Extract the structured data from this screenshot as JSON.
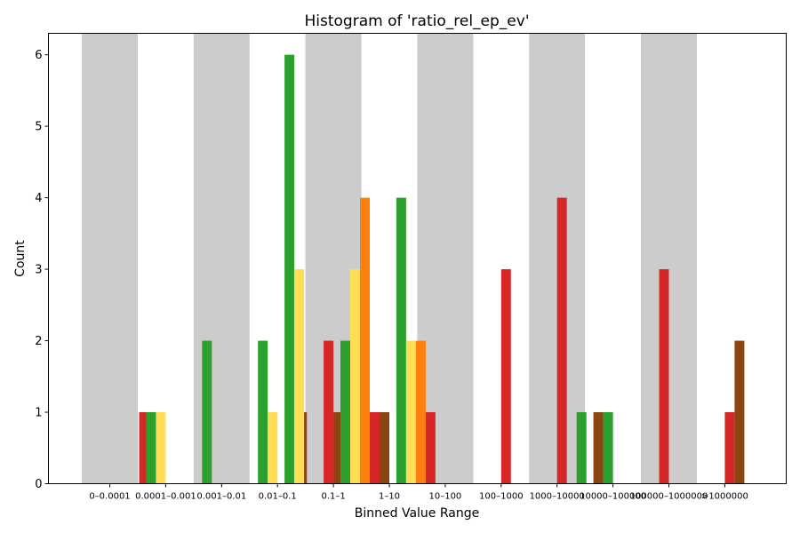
{
  "chart_data": {
    "type": "bar",
    "title": "Histogram of 'ratio_rel_ep_ev'",
    "xlabel": "Binned Value Range",
    "ylabel": "Count",
    "ylim": [
      0,
      6.3
    ],
    "yticks": [
      "0",
      "1",
      "2",
      "3",
      "4",
      "5",
      "6"
    ],
    "grid": false,
    "legend": "none",
    "categories": [
      "0–0.0001",
      "0.0001–0.001",
      "0.001–0.01",
      "0.01–0.1",
      "0.1–1",
      "1–10",
      "10–100",
      "100–1000",
      "1000–10000",
      "10000–100000",
      "100000–1000000",
      ">1000000"
    ],
    "shaded_bands": [
      0,
      2,
      4,
      6,
      8,
      10
    ],
    "band_color": "#cccccc",
    "series_slots": 10,
    "series": [
      {
        "color": "#d62728",
        "values": [
          1,
          0,
          0,
          0,
          0,
          0,
          0,
          0,
          0,
          0,
          0,
          0
        ]
      },
      {
        "color": "#8b4513",
        "values": [
          1,
          0,
          0,
          0,
          0,
          0,
          0,
          0,
          0,
          0,
          0,
          0
        ]
      },
      {
        "color": "#2ca02c",
        "values": [
          0,
          1,
          0,
          0,
          0,
          0,
          0,
          0,
          0,
          0,
          0,
          0
        ]
      },
      {
        "color": "#ffdd57",
        "values": [
          0,
          1,
          0,
          0,
          0,
          0,
          0,
          0,
          0,
          0,
          0,
          0
        ]
      },
      {
        "color": "#2ca02c",
        "values": [
          0,
          0,
          2,
          0,
          0,
          0,
          0,
          0,
          0,
          0,
          0,
          0
        ]
      },
      {
        "color": "#2ca02c",
        "values": [
          0,
          0,
          0,
          2,
          0,
          0,
          0,
          0,
          0,
          0,
          0,
          0
        ]
      },
      {
        "color": "#ffdd57",
        "values": [
          0,
          0,
          0,
          1,
          0,
          0,
          0,
          0,
          0,
          0,
          0,
          0
        ]
      },
      {
        "color": "#8b4513",
        "values": [
          0,
          0,
          0,
          1,
          0,
          0,
          0,
          0,
          0,
          0,
          0,
          0
        ]
      },
      {
        "color": "#2ca02c",
        "values": [
          0,
          0,
          0,
          0,
          6,
          0,
          0,
          0,
          0,
          0,
          0,
          0
        ]
      },
      {
        "color": "#ffdd57",
        "values": [
          0,
          0,
          0,
          0,
          3,
          0,
          0,
          0,
          0,
          0,
          0,
          0
        ]
      },
      {
        "color": "#d62728",
        "values": [
          0,
          0,
          0,
          0,
          2,
          0,
          0,
          0,
          0,
          0,
          0,
          0
        ]
      },
      {
        "color": "#8b4513",
        "values": [
          0,
          0,
          0,
          0,
          1,
          0,
          0,
          0,
          0,
          0,
          0,
          0
        ]
      },
      {
        "color": "#2ca02c",
        "values": [
          0,
          0,
          0,
          0,
          0,
          2,
          0,
          0,
          0,
          0,
          0,
          0
        ]
      },
      {
        "color": "#ffdd57",
        "values": [
          0,
          0,
          0,
          0,
          0,
          3,
          0,
          0,
          0,
          0,
          0,
          0
        ]
      },
      {
        "color": "#ff7f0e",
        "values": [
          0,
          0,
          0,
          0,
          0,
          4,
          0,
          0,
          0,
          0,
          0,
          0
        ]
      },
      {
        "color": "#d62728",
        "values": [
          0,
          0,
          0,
          0,
          0,
          1,
          0,
          0,
          0,
          0,
          0,
          0
        ]
      },
      {
        "color": "#8b4513",
        "values": [
          0,
          0,
          0,
          0,
          0,
          1,
          0,
          0,
          0,
          0,
          0,
          0
        ]
      },
      {
        "color": "#2ca02c",
        "values": [
          0,
          0,
          0,
          0,
          0,
          0,
          4,
          0,
          0,
          0,
          0,
          0
        ]
      },
      {
        "color": "#ffdd57",
        "values": [
          0,
          0,
          0,
          0,
          0,
          0,
          2,
          0,
          0,
          0,
          0,
          0
        ]
      },
      {
        "color": "#ff7f0e",
        "values": [
          0,
          0,
          0,
          0,
          0,
          0,
          2,
          0,
          0,
          0,
          0,
          0
        ]
      },
      {
        "color": "#d62728",
        "values": [
          0,
          0,
          0,
          0,
          0,
          0,
          1,
          0,
          0,
          0,
          0,
          0
        ]
      },
      {
        "color": "#d62728",
        "values": [
          0,
          0,
          0,
          0,
          0,
          0,
          0,
          3,
          0,
          0,
          0,
          0
        ]
      },
      {
        "color": "#d62728",
        "values": [
          0,
          0,
          0,
          0,
          0,
          0,
          0,
          0,
          4,
          0,
          0,
          0
        ]
      },
      {
        "color": "#2ca02c",
        "values": [
          0,
          0,
          0,
          0,
          0,
          0,
          0,
          0,
          1,
          0,
          0,
          0
        ]
      },
      {
        "color": "#8b4513",
        "values": [
          0,
          0,
          0,
          0,
          0,
          0,
          0,
          0,
          0,
          1,
          0,
          0
        ]
      },
      {
        "color": "#2ca02c",
        "values": [
          0,
          0,
          0,
          0,
          0,
          0,
          0,
          0,
          0,
          1,
          0,
          0
        ]
      },
      {
        "color": "#d62728",
        "values": [
          0,
          0,
          0,
          0,
          0,
          0,
          0,
          0,
          0,
          0,
          3,
          0
        ]
      },
      {
        "color": "#d62728",
        "values": [
          0,
          0,
          0,
          0,
          0,
          0,
          0,
          0,
          0,
          0,
          0,
          1
        ]
      },
      {
        "color": "#8b4513",
        "values": [
          0,
          0,
          0,
          0,
          0,
          0,
          0,
          0,
          0,
          0,
          0,
          2
        ]
      }
    ],
    "bar_slots": [
      [
        0,
        1,
        0,
        3.5
      ],
      [
        0,
        1,
        0,
        4.5
      ],
      [
        1,
        1,
        2,
        -1.5
      ],
      [
        1,
        1,
        3,
        -0.5
      ],
      [
        2,
        2,
        4,
        -1.5
      ],
      [
        3,
        2,
        5,
        -1.5
      ],
      [
        3,
        1,
        6,
        -0.5
      ],
      [
        3,
        1,
        7,
        2.5
      ],
      [
        4,
        6,
        8,
        -4.5
      ],
      [
        4,
        3,
        9,
        -3.5
      ],
      [
        4,
        2,
        10,
        -0.5
      ],
      [
        4,
        1,
        11,
        0.5
      ],
      [
        5,
        2,
        12,
        -4.5
      ],
      [
        5,
        3,
        13,
        -3.5
      ],
      [
        5,
        4,
        14,
        -2.5
      ],
      [
        5,
        1,
        15,
        -1.5
      ],
      [
        5,
        1,
        16,
        -0.5
      ],
      [
        6,
        4,
        17,
        -4.5
      ],
      [
        6,
        2,
        18,
        -3.5
      ],
      [
        6,
        2,
        19,
        -2.5
      ],
      [
        6,
        1,
        20,
        -1.5
      ],
      [
        7,
        3,
        21,
        0.5
      ],
      [
        8,
        4,
        22,
        0.5
      ],
      [
        8,
        1,
        23,
        2.5
      ],
      [
        9,
        1,
        24,
        -1.5
      ],
      [
        9,
        1,
        25,
        -0.5
      ],
      [
        10,
        3,
        26,
        -0.5
      ],
      [
        11,
        1,
        27,
        0.5
      ],
      [
        11,
        2,
        28,
        1.5
      ]
    ]
  }
}
